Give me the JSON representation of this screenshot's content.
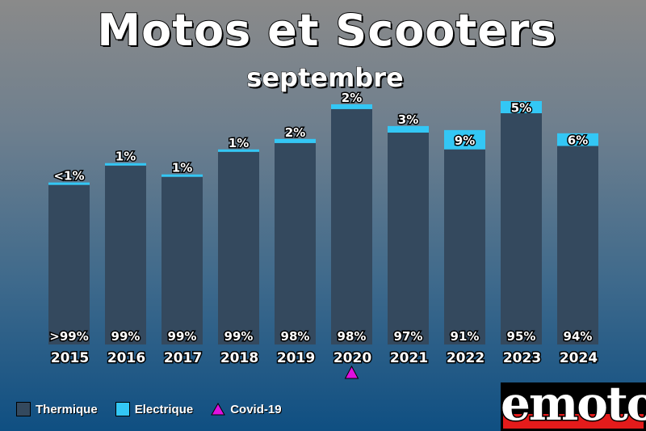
{
  "title": "Motos et Scooters",
  "subtitle": "septembre",
  "legend": {
    "thermique": "Thermique",
    "electrique": "Electrique",
    "covid": "Covid-19"
  },
  "colors": {
    "thermique": "#34495e",
    "electrique": "#33c7f5",
    "covid": "#e010e0"
  },
  "logo": {
    "text": "emoto"
  },
  "chart_data": {
    "type": "bar",
    "stacked": true,
    "title": "Motos et Scooters",
    "subtitle": "septembre",
    "categories": [
      "2015",
      "2016",
      "2017",
      "2018",
      "2019",
      "2020",
      "2021",
      "2022",
      "2023",
      "2024"
    ],
    "totals": [
      201,
      225,
      211,
      242,
      255,
      298,
      271,
      266,
      302,
      262
    ],
    "series": [
      {
        "name": "Thermique",
        "share_labels": [
          ">99%",
          "99%",
          "99%",
          "99%",
          "98%",
          "98%",
          "97%",
          "91%",
          "95%",
          "94%"
        ]
      },
      {
        "name": "Electrique",
        "share_labels": [
          "<1%",
          "1%",
          "1%",
          "1%",
          "2%",
          "2%",
          "3%",
          "9%",
          "5%",
          "6%"
        ]
      }
    ],
    "electric_share_pct": [
      0.5,
      1,
      1,
      1,
      2,
      2,
      3,
      9,
      5,
      6
    ],
    "ylim": [
      0,
      310
    ],
    "annotations": [
      {
        "category": "2020",
        "marker": "triangle",
        "label": "Covid-19"
      }
    ],
    "grid": false,
    "legend_position": "bottom-left"
  }
}
